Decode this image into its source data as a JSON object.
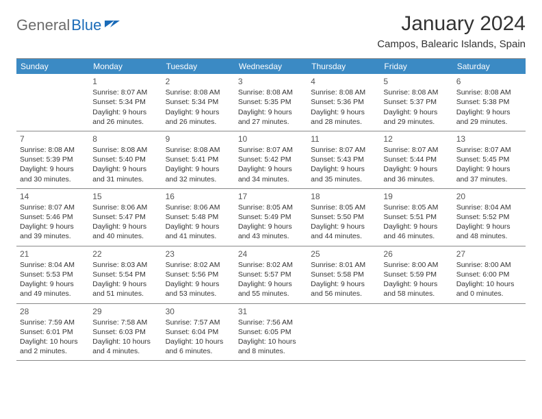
{
  "logo": {
    "text1": "General",
    "text2": "Blue"
  },
  "title": "January 2024",
  "location": "Campos, Balearic Islands, Spain",
  "colors": {
    "header_bg": "#3b8ac4",
    "header_text": "#ffffff",
    "body_text": "#333333",
    "logo_gray": "#6b6b6b",
    "logo_blue": "#1a6bb8",
    "border": "#888888",
    "background": "#ffffff"
  },
  "layout": {
    "cell_fontsize": 10.5,
    "header_fontsize": 12,
    "title_fontsize": 30
  },
  "day_headers": [
    "Sunday",
    "Monday",
    "Tuesday",
    "Wednesday",
    "Thursday",
    "Friday",
    "Saturday"
  ],
  "labels": {
    "sunrise": "Sunrise:",
    "sunset": "Sunset:",
    "daylight": "Daylight:"
  },
  "weeks": [
    [
      null,
      {
        "n": "1",
        "sr": "8:07 AM",
        "ss": "5:34 PM",
        "dl": "9 hours and 26 minutes."
      },
      {
        "n": "2",
        "sr": "8:08 AM",
        "ss": "5:34 PM",
        "dl": "9 hours and 26 minutes."
      },
      {
        "n": "3",
        "sr": "8:08 AM",
        "ss": "5:35 PM",
        "dl": "9 hours and 27 minutes."
      },
      {
        "n": "4",
        "sr": "8:08 AM",
        "ss": "5:36 PM",
        "dl": "9 hours and 28 minutes."
      },
      {
        "n": "5",
        "sr": "8:08 AM",
        "ss": "5:37 PM",
        "dl": "9 hours and 29 minutes."
      },
      {
        "n": "6",
        "sr": "8:08 AM",
        "ss": "5:38 PM",
        "dl": "9 hours and 29 minutes."
      }
    ],
    [
      {
        "n": "7",
        "sr": "8:08 AM",
        "ss": "5:39 PM",
        "dl": "9 hours and 30 minutes."
      },
      {
        "n": "8",
        "sr": "8:08 AM",
        "ss": "5:40 PM",
        "dl": "9 hours and 31 minutes."
      },
      {
        "n": "9",
        "sr": "8:08 AM",
        "ss": "5:41 PM",
        "dl": "9 hours and 32 minutes."
      },
      {
        "n": "10",
        "sr": "8:07 AM",
        "ss": "5:42 PM",
        "dl": "9 hours and 34 minutes."
      },
      {
        "n": "11",
        "sr": "8:07 AM",
        "ss": "5:43 PM",
        "dl": "9 hours and 35 minutes."
      },
      {
        "n": "12",
        "sr": "8:07 AM",
        "ss": "5:44 PM",
        "dl": "9 hours and 36 minutes."
      },
      {
        "n": "13",
        "sr": "8:07 AM",
        "ss": "5:45 PM",
        "dl": "9 hours and 37 minutes."
      }
    ],
    [
      {
        "n": "14",
        "sr": "8:07 AM",
        "ss": "5:46 PM",
        "dl": "9 hours and 39 minutes."
      },
      {
        "n": "15",
        "sr": "8:06 AM",
        "ss": "5:47 PM",
        "dl": "9 hours and 40 minutes."
      },
      {
        "n": "16",
        "sr": "8:06 AM",
        "ss": "5:48 PM",
        "dl": "9 hours and 41 minutes."
      },
      {
        "n": "17",
        "sr": "8:05 AM",
        "ss": "5:49 PM",
        "dl": "9 hours and 43 minutes."
      },
      {
        "n": "18",
        "sr": "8:05 AM",
        "ss": "5:50 PM",
        "dl": "9 hours and 44 minutes."
      },
      {
        "n": "19",
        "sr": "8:05 AM",
        "ss": "5:51 PM",
        "dl": "9 hours and 46 minutes."
      },
      {
        "n": "20",
        "sr": "8:04 AM",
        "ss": "5:52 PM",
        "dl": "9 hours and 48 minutes."
      }
    ],
    [
      {
        "n": "21",
        "sr": "8:04 AM",
        "ss": "5:53 PM",
        "dl": "9 hours and 49 minutes."
      },
      {
        "n": "22",
        "sr": "8:03 AM",
        "ss": "5:54 PM",
        "dl": "9 hours and 51 minutes."
      },
      {
        "n": "23",
        "sr": "8:02 AM",
        "ss": "5:56 PM",
        "dl": "9 hours and 53 minutes."
      },
      {
        "n": "24",
        "sr": "8:02 AM",
        "ss": "5:57 PM",
        "dl": "9 hours and 55 minutes."
      },
      {
        "n": "25",
        "sr": "8:01 AM",
        "ss": "5:58 PM",
        "dl": "9 hours and 56 minutes."
      },
      {
        "n": "26",
        "sr": "8:00 AM",
        "ss": "5:59 PM",
        "dl": "9 hours and 58 minutes."
      },
      {
        "n": "27",
        "sr": "8:00 AM",
        "ss": "6:00 PM",
        "dl": "10 hours and 0 minutes."
      }
    ],
    [
      {
        "n": "28",
        "sr": "7:59 AM",
        "ss": "6:01 PM",
        "dl": "10 hours and 2 minutes."
      },
      {
        "n": "29",
        "sr": "7:58 AM",
        "ss": "6:03 PM",
        "dl": "10 hours and 4 minutes."
      },
      {
        "n": "30",
        "sr": "7:57 AM",
        "ss": "6:04 PM",
        "dl": "10 hours and 6 minutes."
      },
      {
        "n": "31",
        "sr": "7:56 AM",
        "ss": "6:05 PM",
        "dl": "10 hours and 8 minutes."
      },
      null,
      null,
      null
    ]
  ]
}
